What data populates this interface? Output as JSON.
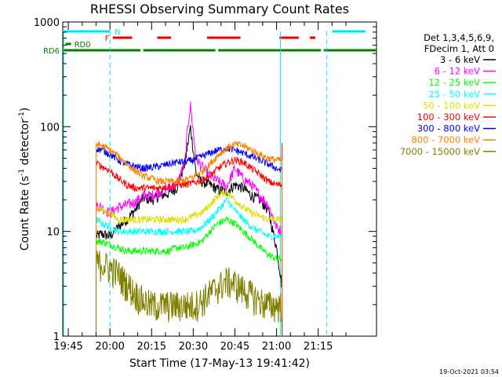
{
  "chart_data": {
    "type": "line",
    "title": "RHESSI Observing Summary Count Rates",
    "xlabel": "Start Time (17-May-13 19:41:42)",
    "ylabel": "Count Rate (s",
    "ylabel_sup": "-1",
    "ylabel_tail": " detector",
    "ylabel_sup2": "-1",
    "ylabel_close": ")",
    "y_scale": "log",
    "ylim": [
      1,
      1000
    ],
    "xlim_minutes": [
      -17,
      96
    ],
    "x_axis_start": "19:41:42",
    "x_ticks": [
      {
        "label": "19:45",
        "minutes": -15
      },
      {
        "label": "20:00",
        "minutes": 0
      },
      {
        "label": "20:15",
        "minutes": 15
      },
      {
        "label": "20:30",
        "minutes": 30
      },
      {
        "label": "20:45",
        "minutes": 45
      },
      {
        "label": "21:00",
        "minutes": 60
      },
      {
        "label": "21:15",
        "minutes": 75
      }
    ],
    "y_ticks": [
      {
        "label": "1",
        "value": 1
      },
      {
        "label": "10",
        "value": 10
      },
      {
        "label": "100",
        "value": 100
      },
      {
        "label": "1000",
        "value": 1000
      }
    ],
    "legend_header": [
      "Det 1,3,4,5,6,9,",
      "FDecim 1, Att 0"
    ],
    "legend_placement": "right",
    "footer_date": "19-Oct-2021 03:54",
    "flags": {
      "n_label": "N",
      "f_label": "F",
      "rd0_label": "RD0",
      "rd6_label": "RD6",
      "n_color": "#00e5ee",
      "f_color": "#ee0000",
      "rd_color": "#008000",
      "n_segments": [
        [
          -17,
          0
        ],
        [
          80,
          92
        ]
      ],
      "f_segments": [
        [
          1,
          8
        ],
        [
          17,
          22
        ],
        [
          35,
          47
        ],
        [
          61,
          68
        ],
        [
          72,
          74
        ]
      ],
      "rd0_segments": [
        [
          -16,
          -14
        ]
      ],
      "rd6_segments": [
        [
          -17,
          11
        ],
        [
          12,
          38
        ],
        [
          39,
          76
        ],
        [
          77,
          96
        ]
      ]
    },
    "night_boundaries_cyan_dashed": [
      0,
      78
    ],
    "saa_boundaries": [
      -5,
      62
    ],
    "series": [
      {
        "name": "3 - 6 keV",
        "color": "#000000",
        "x": [
          -5,
          -3,
          0,
          3,
          6,
          9,
          12,
          15,
          18,
          21,
          24,
          27,
          29,
          30,
          31,
          33,
          36,
          39,
          42,
          45,
          48,
          51,
          54,
          57,
          60,
          62
        ],
        "y": [
          9,
          9.5,
          9,
          11,
          13,
          16,
          21,
          20,
          22,
          23,
          26,
          45,
          100,
          60,
          36,
          30,
          28,
          25,
          24,
          28,
          26,
          22,
          20,
          16,
          7,
          3
        ]
      },
      {
        "name": "6 - 12 keV",
        "color": "#ff00ff",
        "x": [
          -5,
          -3,
          0,
          3,
          6,
          9,
          12,
          15,
          18,
          21,
          24,
          27,
          28,
          29,
          30,
          31,
          33,
          36,
          39,
          42,
          45,
          48,
          51,
          54,
          57,
          60,
          62
        ],
        "y": [
          18,
          17,
          15,
          17,
          18,
          19,
          22,
          22,
          24,
          26,
          28,
          45,
          100,
          160,
          90,
          50,
          42,
          34,
          30,
          27,
          40,
          32,
          28,
          22,
          18,
          11,
          10
        ]
      },
      {
        "name": "12 - 25 keV",
        "color": "#00ff00",
        "x": [
          -5,
          -3,
          0,
          3,
          6,
          9,
          12,
          15,
          18,
          21,
          24,
          27,
          30,
          33,
          36,
          39,
          42,
          45,
          48,
          51,
          54,
          57,
          60,
          62
        ],
        "y": [
          8,
          8,
          7.5,
          7,
          6.5,
          6.5,
          6.5,
          6.5,
          6.5,
          6.5,
          7,
          7,
          7.5,
          8,
          10,
          12,
          13,
          12,
          10,
          8.5,
          7,
          6,
          5.5,
          5.5
        ]
      },
      {
        "name": "25 - 50 keV",
        "color": "#00ffff",
        "x": [
          -5,
          -3,
          0,
          3,
          6,
          9,
          12,
          15,
          18,
          21,
          24,
          27,
          30,
          33,
          36,
          39,
          42,
          45,
          48,
          51,
          54,
          57,
          60,
          62
        ],
        "y": [
          13,
          12,
          11,
          10,
          10,
          10,
          10,
          10,
          10,
          10,
          10,
          10,
          10,
          11,
          13,
          16,
          20,
          16,
          13,
          11,
          10,
          9,
          9,
          9
        ]
      },
      {
        "name": "50 - 100 keV",
        "color": "#dddd00",
        "x": [
          -5,
          -3,
          0,
          3,
          6,
          9,
          12,
          15,
          18,
          21,
          24,
          27,
          30,
          33,
          36,
          39,
          42,
          45,
          48,
          51,
          54,
          57,
          60,
          62
        ],
        "y": [
          17,
          16,
          15,
          13,
          13,
          13,
          13,
          13,
          13,
          13,
          13,
          13,
          14,
          15,
          18,
          22,
          24,
          20,
          17,
          15,
          14,
          13,
          13,
          13
        ]
      },
      {
        "name": "100 - 300 keV",
        "color": "#ff0000",
        "x": [
          -5,
          -3,
          0,
          3,
          6,
          9,
          12,
          15,
          18,
          21,
          24,
          27,
          30,
          33,
          36,
          39,
          42,
          45,
          48,
          51,
          54,
          57,
          60,
          62
        ],
        "y": [
          45,
          42,
          38,
          32,
          28,
          26,
          26,
          26,
          26,
          27,
          28,
          28,
          29,
          31,
          34,
          40,
          45,
          48,
          46,
          40,
          35,
          30,
          28,
          28
        ]
      },
      {
        "name": "300 - 800 keV",
        "color": "#0000ff",
        "x": [
          -5,
          -3,
          0,
          3,
          6,
          9,
          12,
          15,
          18,
          21,
          24,
          27,
          30,
          33,
          36,
          39,
          42,
          45,
          48,
          51,
          54,
          57,
          60,
          62
        ],
        "y": [
          62,
          60,
          55,
          48,
          44,
          42,
          40,
          41,
          42,
          44,
          46,
          46,
          48,
          52,
          56,
          60,
          62,
          60,
          56,
          52,
          48,
          44,
          40,
          38
        ]
      },
      {
        "name": "800 - 7000 keV",
        "color": "#ff8000",
        "x": [
          -5,
          -3,
          0,
          3,
          6,
          9,
          12,
          15,
          18,
          21,
          24,
          27,
          30,
          33,
          36,
          39,
          42,
          45,
          48,
          51,
          54,
          57,
          60,
          62
        ],
        "y": [
          68,
          66,
          60,
          52,
          44,
          38,
          34,
          32,
          30,
          30,
          30,
          31,
          33,
          37,
          44,
          54,
          62,
          68,
          66,
          60,
          54,
          50,
          48,
          48
        ]
      },
      {
        "name": "7000 - 15000 keV",
        "color": "#808000",
        "x": [
          -5,
          -3,
          0,
          3,
          6,
          9,
          12,
          15,
          18,
          21,
          24,
          27,
          30,
          33,
          36,
          39,
          42,
          45,
          48,
          51,
          54,
          57,
          60,
          62
        ],
        "y": [
          5,
          5,
          4.5,
          4,
          3.2,
          2.6,
          2.2,
          2,
          2,
          2,
          2,
          2,
          2,
          2.2,
          2.6,
          3,
          3.4,
          3.2,
          2.8,
          2.5,
          2.2,
          2,
          2,
          2
        ]
      }
    ]
  }
}
